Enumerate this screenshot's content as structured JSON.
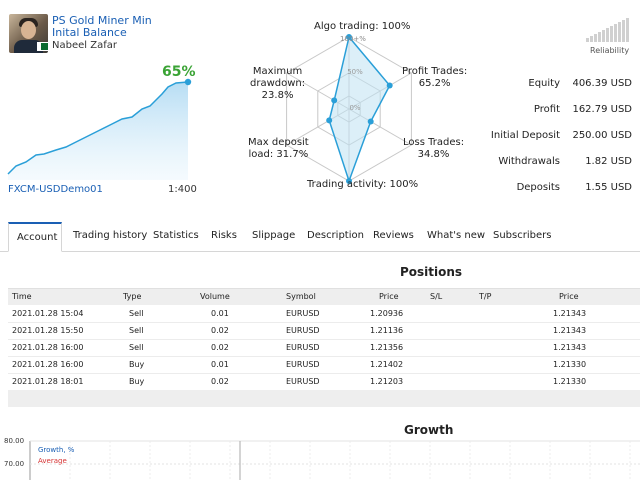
{
  "header": {
    "title": "PS Gold Miner Min Inital Balance",
    "author": "Nabeel Zafar",
    "growth_percent": "65%",
    "account_name": "FXCM-USDDemo01",
    "leverage": "1:400"
  },
  "radar": {
    "labels": {
      "algo_trading": "Algo trading: 100%",
      "profit_trades_line1": "Profit Trades:",
      "profit_trades_line2": "65.2%",
      "loss_trades_line1": "Loss Trades:",
      "loss_trades_line2": "34.8%",
      "trading_activity": "Trading activity: 100%",
      "max_deposit_line1": "Max deposit",
      "max_deposit_line2": "load: 31.7%",
      "max_drawdown_line1": "Maximum",
      "max_drawdown_line2": "drawdown:",
      "max_drawdown_line3": "23.8%"
    },
    "ring_labels": [
      "100+%",
      "50%",
      "0%"
    ],
    "values": {
      "algo_trading": 100,
      "profit_trades": 65.2,
      "loss_trades": 34.8,
      "trading_activity": 100,
      "max_deposit_load": 31.7,
      "max_drawdown": 23.8
    }
  },
  "reliability": {
    "label": "Reliability"
  },
  "stats": [
    {
      "label": "Equity",
      "value": "406.39 USD"
    },
    {
      "label": "Profit",
      "value": "162.79 USD"
    },
    {
      "label": "Initial Deposit",
      "value": "250.00 USD"
    },
    {
      "label": "Withdrawals",
      "value": "1.82 USD"
    },
    {
      "label": "Deposits",
      "value": "1.55 USD"
    }
  ],
  "tabs": [
    {
      "label": "Account"
    },
    {
      "label": "Trading history"
    },
    {
      "label": "Statistics"
    },
    {
      "label": "Risks"
    },
    {
      "label": "Slippage"
    },
    {
      "label": "Description"
    },
    {
      "label": "Reviews"
    },
    {
      "label": "What's new"
    },
    {
      "label": "Subscribers"
    }
  ],
  "positions": {
    "title": "Positions",
    "columns": {
      "time": "Time",
      "type": "Type",
      "volume": "Volume",
      "symbol": "Symbol",
      "price": "Price",
      "sl": "S/L",
      "tp": "T/P",
      "price2": "Price"
    },
    "rows": [
      {
        "time": "2021.01.28 15:04",
        "type": "Sell",
        "volume": "0.01",
        "symbol": "EURUSD",
        "price": "1.20936",
        "price2": "1.21343"
      },
      {
        "time": "2021.01.28 15:50",
        "type": "Sell",
        "volume": "0.02",
        "symbol": "EURUSD",
        "price": "1.21136",
        "price2": "1.21343"
      },
      {
        "time": "2021.01.28 16:00",
        "type": "Sell",
        "volume": "0.02",
        "symbol": "EURUSD",
        "price": "1.21356",
        "price2": "1.21343"
      },
      {
        "time": "2021.01.28 16:00",
        "type": "Buy",
        "volume": "0.01",
        "symbol": "EURUSD",
        "price": "1.21402",
        "price2": "1.21330"
      },
      {
        "time": "2021.01.28 18:01",
        "type": "Buy",
        "volume": "0.02",
        "symbol": "EURUSD",
        "price": "1.21203",
        "price2": "1.21330"
      }
    ]
  },
  "growth": {
    "title": "Growth",
    "y_ticks": [
      "80.00",
      "70.00"
    ],
    "legend_growth": "Growth, %",
    "legend_average": "Average"
  },
  "colors": {
    "accent": "#1a5fb4",
    "growth_green": "#3aa335",
    "chart_line": "#2a9fd8",
    "average_red": "#d63333"
  }
}
